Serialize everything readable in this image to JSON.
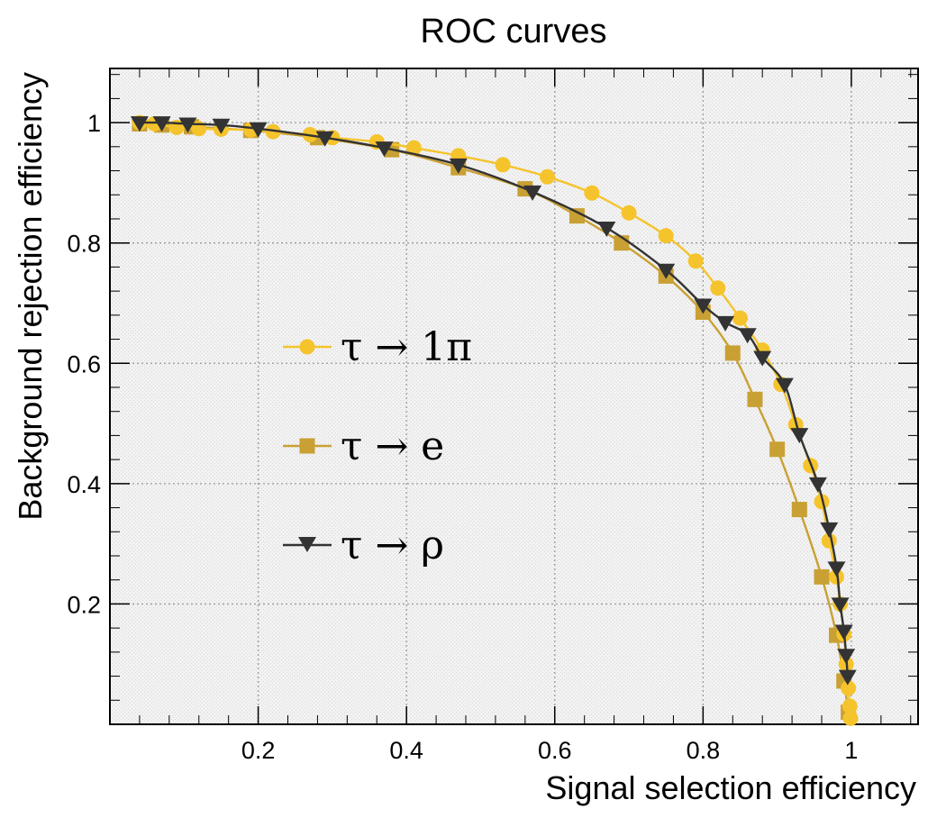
{
  "chart_data": {
    "type": "line",
    "title": "ROC curves",
    "xlabel": "Signal selection efficiency",
    "ylabel": "Background rejection efficiency",
    "xlim": [
      0.0,
      1.09
    ],
    "ylim": [
      0.0,
      1.09
    ],
    "x_ticks": [
      0.2,
      0.4,
      0.6,
      0.8,
      1.0
    ],
    "x_tick_labels": [
      "0.2",
      "0.4",
      "0.6",
      "0.8",
      "1"
    ],
    "y_ticks": [
      0.2,
      0.4,
      0.6,
      0.8,
      1.0
    ],
    "y_tick_labels": [
      "0.2",
      "0.4",
      "0.6",
      "0.8",
      "1"
    ],
    "grid": true,
    "legend_position": "left-center",
    "series": [
      {
        "name": "τ → 1π",
        "color": "#f5c42c",
        "marker": "circle",
        "points": [
          [
            0.04,
            1.0
          ],
          [
            0.06,
            0.998
          ],
          [
            0.09,
            0.992
          ],
          [
            0.12,
            0.99
          ],
          [
            0.15,
            0.989
          ],
          [
            0.19,
            0.988
          ],
          [
            0.22,
            0.985
          ],
          [
            0.27,
            0.98
          ],
          [
            0.3,
            0.975
          ],
          [
            0.36,
            0.968
          ],
          [
            0.41,
            0.958
          ],
          [
            0.47,
            0.945
          ],
          [
            0.53,
            0.93
          ],
          [
            0.59,
            0.91
          ],
          [
            0.65,
            0.883
          ],
          [
            0.7,
            0.85
          ],
          [
            0.75,
            0.812
          ],
          [
            0.79,
            0.77
          ],
          [
            0.82,
            0.725
          ],
          [
            0.85,
            0.675
          ],
          [
            0.88,
            0.622
          ],
          [
            0.905,
            0.565
          ],
          [
            0.925,
            0.498
          ],
          [
            0.945,
            0.43
          ],
          [
            0.96,
            0.37
          ],
          [
            0.97,
            0.305
          ],
          [
            0.98,
            0.245
          ],
          [
            0.985,
            0.2
          ],
          [
            0.99,
            0.15
          ],
          [
            0.993,
            0.1
          ],
          [
            0.996,
            0.06
          ],
          [
            0.998,
            0.03
          ],
          [
            0.999,
            0.01
          ]
        ]
      },
      {
        "name": "τ → e",
        "color": "#c9a033",
        "marker": "square",
        "points": [
          [
            0.04,
            0.998
          ],
          [
            0.07,
            0.996
          ],
          [
            0.11,
            0.993
          ],
          [
            0.19,
            0.987
          ],
          [
            0.28,
            0.975
          ],
          [
            0.38,
            0.955
          ],
          [
            0.47,
            0.925
          ],
          [
            0.56,
            0.89
          ],
          [
            0.63,
            0.845
          ],
          [
            0.69,
            0.8
          ],
          [
            0.75,
            0.745
          ],
          [
            0.8,
            0.685
          ],
          [
            0.84,
            0.617
          ],
          [
            0.87,
            0.54
          ],
          [
            0.9,
            0.457
          ],
          [
            0.93,
            0.357
          ],
          [
            0.96,
            0.245
          ],
          [
            0.98,
            0.148
          ],
          [
            0.99,
            0.072
          ],
          [
            0.996,
            0.02
          ]
        ]
      },
      {
        "name": "τ → ρ",
        "color": "#333333",
        "marker": "triangle-down",
        "points": [
          [
            0.04,
            1.0
          ],
          [
            0.07,
            1.0
          ],
          [
            0.105,
            0.998
          ],
          [
            0.15,
            0.996
          ],
          [
            0.2,
            0.99
          ],
          [
            0.29,
            0.975
          ],
          [
            0.37,
            0.958
          ],
          [
            0.47,
            0.93
          ],
          [
            0.57,
            0.885
          ],
          [
            0.67,
            0.825
          ],
          [
            0.75,
            0.755
          ],
          [
            0.8,
            0.697
          ],
          [
            0.83,
            0.668
          ],
          [
            0.86,
            0.648
          ],
          [
            0.88,
            0.61
          ],
          [
            0.91,
            0.565
          ],
          [
            0.93,
            0.482
          ],
          [
            0.955,
            0.4
          ],
          [
            0.97,
            0.325
          ],
          [
            0.98,
            0.26
          ],
          [
            0.985,
            0.2
          ],
          [
            0.99,
            0.155
          ],
          [
            0.993,
            0.115
          ],
          [
            0.995,
            0.08
          ]
        ]
      }
    ]
  }
}
